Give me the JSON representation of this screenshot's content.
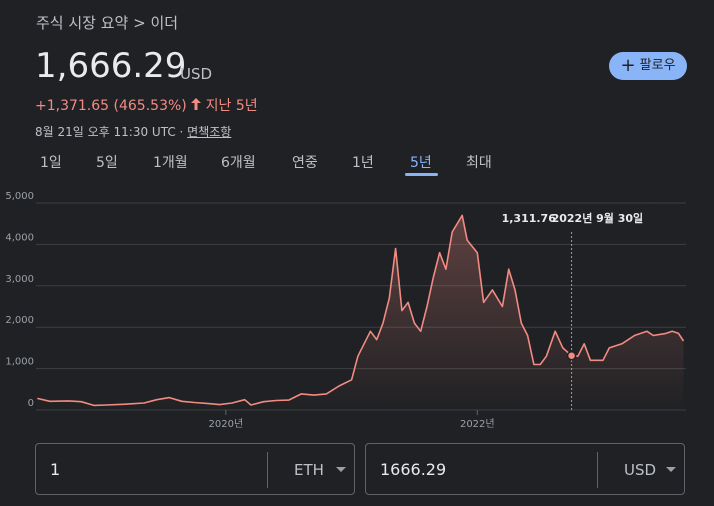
{
  "header": {
    "breadcrumb": "주식 시장 요약 > 이더",
    "price": "1,666.29",
    "currency": "USD",
    "change": "+1,371.65 (465.53%)",
    "period": "지난 5년",
    "timestamp": "8월 21일 오후 11:30 UTC ·",
    "disclaimer": "면책조항",
    "follow": "팔로우"
  },
  "tabs": {
    "items": [
      "1일",
      "5일",
      "1개월",
      "6개월",
      "연중",
      "1년",
      "5년",
      "최대"
    ],
    "selected": 6
  },
  "chart_data": {
    "type": "line",
    "color": "#f28b82",
    "x": [
      2018.5,
      2018.6,
      2018.75,
      2018.85,
      2018.95,
      2019.05,
      2019.2,
      2019.35,
      2019.45,
      2019.55,
      2019.65,
      2019.75,
      2019.85,
      2019.95,
      2020.05,
      2020.15,
      2020.2,
      2020.3,
      2020.4,
      2020.5,
      2020.6,
      2020.7,
      2020.8,
      2020.9,
      2021.0,
      2021.05,
      2021.1,
      2021.15,
      2021.2,
      2021.25,
      2021.3,
      2021.35,
      2021.4,
      2021.45,
      2021.5,
      2021.55,
      2021.6,
      2021.65,
      2021.7,
      2021.75,
      2021.8,
      2021.88,
      2021.92,
      2022.0,
      2022.05,
      2022.12,
      2022.2,
      2022.25,
      2022.3,
      2022.35,
      2022.4,
      2022.45,
      2022.5,
      2022.55,
      2022.62,
      2022.68,
      2022.75,
      2022.8,
      2022.85,
      2022.9,
      2023.0,
      2023.05,
      2023.15,
      2023.25,
      2023.35,
      2023.4,
      2023.5,
      2023.55,
      2023.6,
      2023.64
    ],
    "values": [
      280,
      210,
      220,
      200,
      110,
      120,
      140,
      170,
      250,
      300,
      210,
      180,
      160,
      130,
      170,
      250,
      120,
      200,
      230,
      240,
      390,
      360,
      390,
      580,
      730,
      1300,
      1600,
      1900,
      1700,
      2100,
      2700,
      3900,
      2400,
      2600,
      2100,
      1900,
      2500,
      3200,
      3800,
      3400,
      4300,
      4700,
      4100,
      3800,
      2600,
      2900,
      2500,
      3400,
      2900,
      2100,
      1800,
      1100,
      1100,
      1300,
      1900,
      1500,
      1311.76,
      1300,
      1600,
      1200,
      1200,
      1500,
      1600,
      1800,
      1900,
      1800,
      1850,
      1900,
      1850,
      1666.29
    ],
    "xlim": [
      2018.49,
      2023.66
    ],
    "xticks": [
      {
        "value": 2020,
        "label": "2020년"
      },
      {
        "value": 2022,
        "label": "2022년"
      }
    ],
    "ylim": [
      0,
      5000
    ],
    "yticks": [
      0,
      {
        "value": 1000,
        "label": "1,000"
      },
      {
        "value": 2000,
        "label": "2,000"
      },
      {
        "value": 3000,
        "label": "3,000"
      },
      {
        "value": 4000,
        "label": "4,000"
      },
      {
        "value": 5000,
        "label": "5,000"
      }
    ],
    "grid": true,
    "tooltip": {
      "x": 2022.75,
      "value": 1311.76,
      "value_label": "1,311.76",
      "date_label": "2022년 9월 30일"
    }
  },
  "converter": {
    "amount": "1",
    "from": "ETH",
    "result": "1666.29",
    "to": "USD"
  }
}
